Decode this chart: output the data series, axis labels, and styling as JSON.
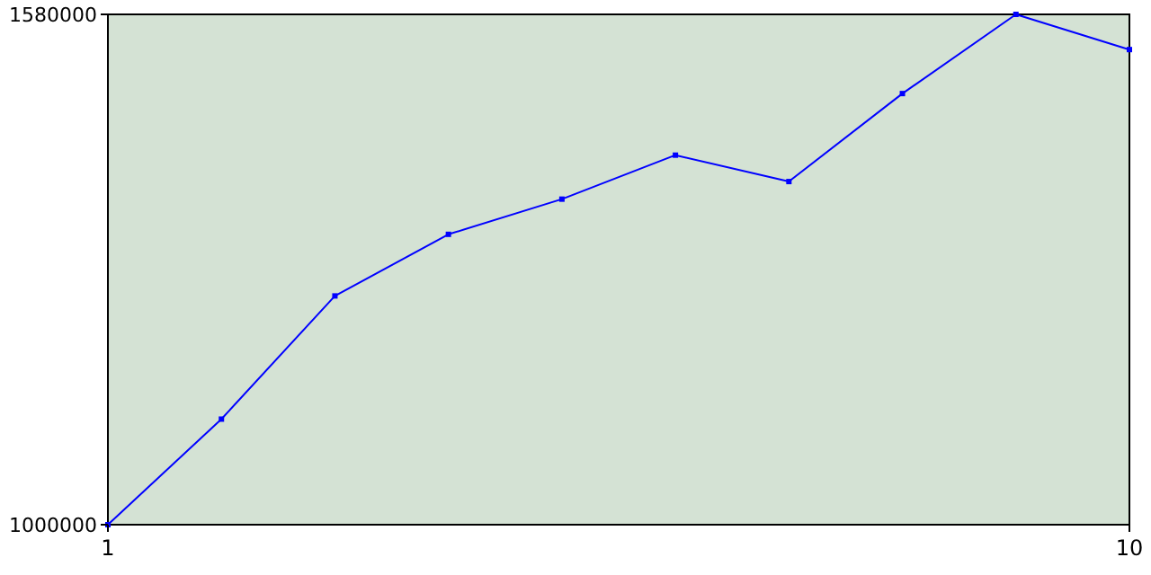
{
  "chart_data": {
    "type": "line",
    "x": [
      1,
      2,
      3,
      4,
      5,
      6,
      7,
      8,
      9,
      10
    ],
    "series": [
      {
        "color": "#0000ff",
        "values": [
          1000000,
          1120000,
          1260000,
          1330000,
          1370000,
          1420000,
          1390000,
          1490000,
          1580000,
          1540000
        ]
      }
    ],
    "xlim": [
      1,
      10
    ],
    "xticks": [
      1,
      10
    ],
    "ylim": [
      1000000,
      1580000
    ],
    "yticks": [
      1000000,
      1580000
    ],
    "grid": false,
    "marker": "square",
    "line_style": "solid"
  }
}
